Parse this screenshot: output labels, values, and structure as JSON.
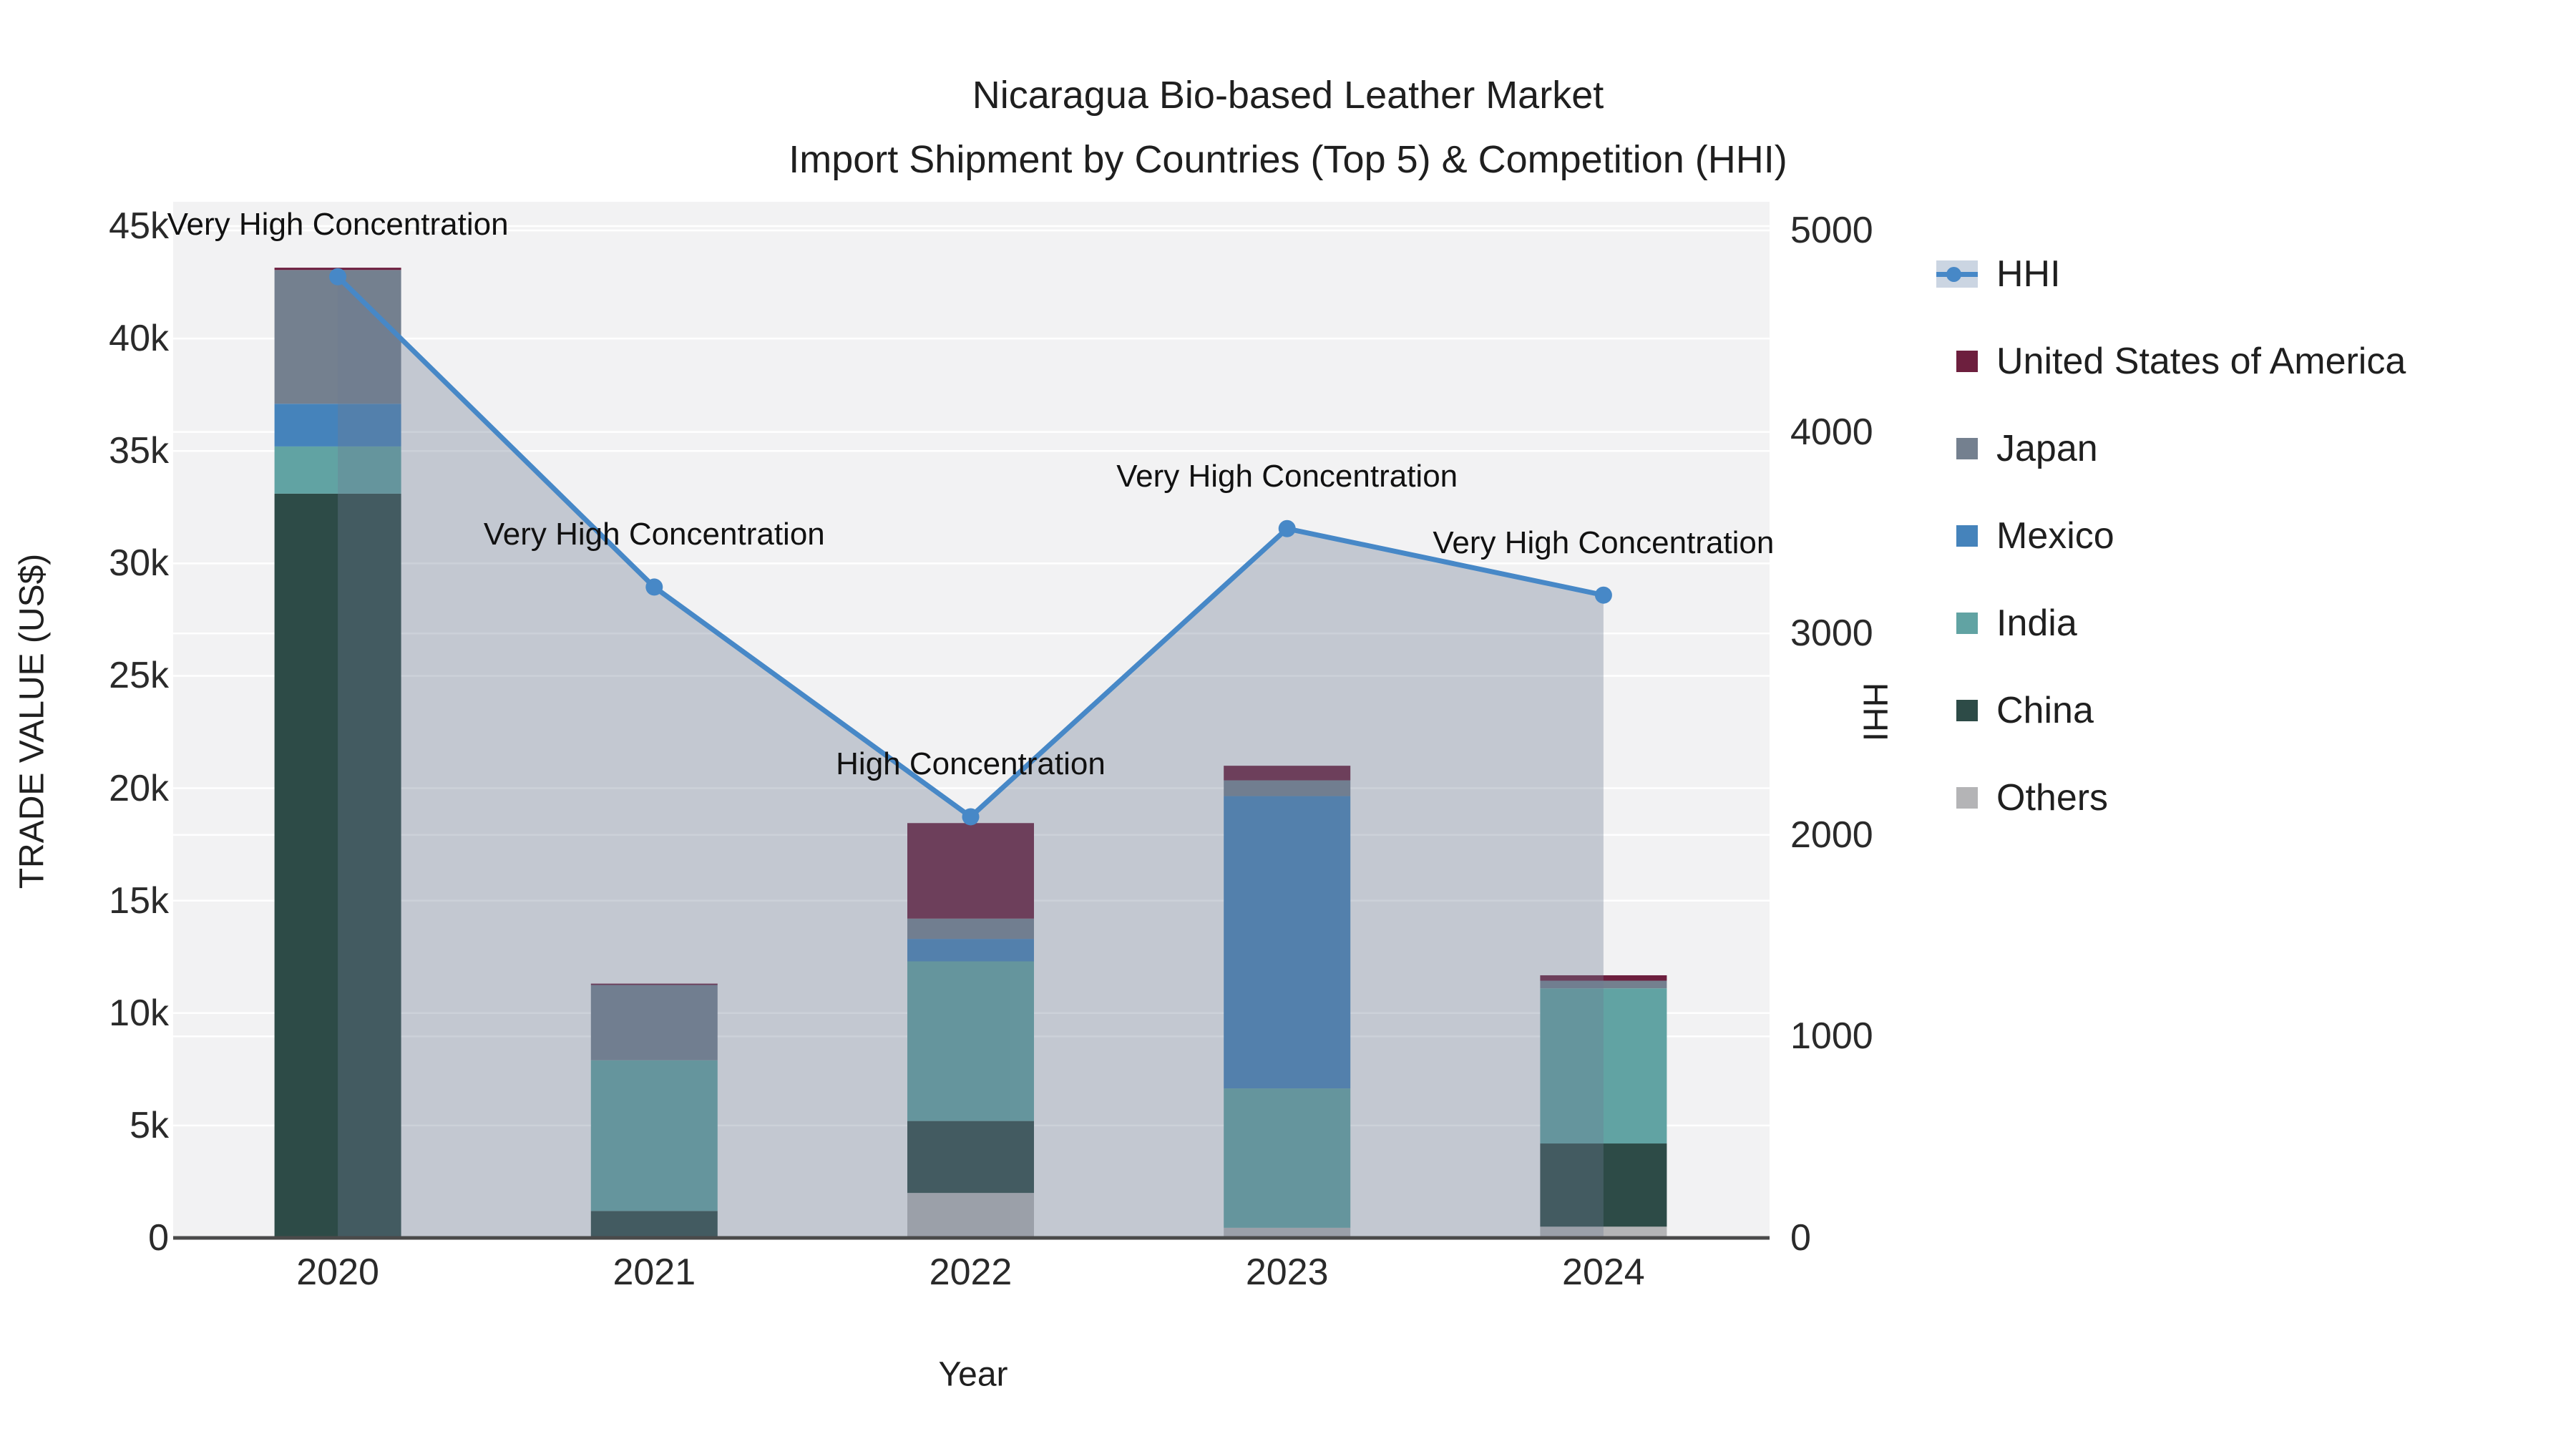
{
  "title": {
    "line1": "Nicaragua Bio-based Leather Market",
    "line2": "Import Shipment by Countries (Top 5) & Competition (HHI)"
  },
  "axes": {
    "x": {
      "title": "Year",
      "categories": [
        "2020",
        "2021",
        "2022",
        "2023",
        "2024"
      ]
    },
    "y_left": {
      "title": "TRADE VALUE (US$)",
      "tick_values": [
        0,
        5000,
        10000,
        15000,
        20000,
        25000,
        30000,
        35000,
        40000,
        45000
      ],
      "tick_labels": [
        "0",
        "5k",
        "10k",
        "15k",
        "20k",
        "25k",
        "30k",
        "35k",
        "40k",
        "45k"
      ],
      "max": 45000
    },
    "y_right": {
      "title": "HHI",
      "tick_values": [
        0,
        1000,
        2000,
        3000,
        4000,
        5000
      ],
      "tick_labels": [
        "0",
        "1000",
        "2000",
        "3000",
        "4000",
        "5000"
      ],
      "max": 5000
    }
  },
  "legend": {
    "items": [
      {
        "label": "HHI",
        "type": "line",
        "color": "#4788c7"
      },
      {
        "label": "United States of America",
        "type": "square",
        "color": "#6d1f3e"
      },
      {
        "label": "Japan",
        "type": "square",
        "color": "#74808f"
      },
      {
        "label": "Mexico",
        "type": "square",
        "color": "#4583bb"
      },
      {
        "label": "India",
        "type": "square",
        "color": "#61a3a3"
      },
      {
        "label": "China",
        "type": "square",
        "color": "#2d4b47"
      },
      {
        "label": "Others",
        "type": "square",
        "color": "#b4b4b6"
      }
    ]
  },
  "annotations": [
    {
      "category": "2020",
      "text": "Very High Concentration"
    },
    {
      "category": "2021",
      "text": "Very High Concentration"
    },
    {
      "category": "2022",
      "text": "High Concentration"
    },
    {
      "category": "2023",
      "text": "Very High Concentration"
    },
    {
      "category": "2024",
      "text": "Very High Concentration"
    }
  ],
  "colors": {
    "plot_bg": "#f2f2f3",
    "grid": "#ffffff",
    "zero_line": "#4a4a4a",
    "hhi_line": "#4788c7",
    "hhi_fill": "rgba(108,122,145,0.35)",
    "text": "#1f1f1f"
  },
  "chart_data": {
    "type": "bar",
    "subtype": "stacked bars + line on secondary axis",
    "title": "Nicaragua Bio-based Leather Market — Import Shipment by Countries (Top 5) & Competition (HHI)",
    "xlabel": "Year",
    "ylabel": "TRADE VALUE (US$)",
    "y2label": "HHI",
    "ylim": [
      0,
      45000
    ],
    "y2lim": [
      0,
      5000
    ],
    "grid": true,
    "legend_position": "right",
    "categories": [
      "2020",
      "2021",
      "2022",
      "2023",
      "2024"
    ],
    "bar_series": [
      {
        "name": "Others",
        "color": "#b4b4b6",
        "values": [
          0,
          0,
          2000,
          450,
          500
        ]
      },
      {
        "name": "China",
        "color": "#2d4b47",
        "values": [
          33100,
          1200,
          3200,
          0,
          3700
        ]
      },
      {
        "name": "India",
        "color": "#61a3a3",
        "values": [
          2100,
          6700,
          7100,
          6200,
          6900
        ]
      },
      {
        "name": "Mexico",
        "color": "#4583bb",
        "values": [
          1900,
          0,
          1000,
          13000,
          0
        ]
      },
      {
        "name": "Japan",
        "color": "#74808f",
        "values": [
          5950,
          3350,
          900,
          700,
          340
        ]
      },
      {
        "name": "United States of America",
        "color": "#6d1f3e",
        "values": [
          100,
          60,
          4250,
          650,
          240
        ]
      }
    ],
    "line_series": {
      "name": "HHI",
      "axis": "right",
      "color": "#4788c7",
      "values": [
        4770,
        3230,
        2090,
        3520,
        3190
      ]
    }
  }
}
